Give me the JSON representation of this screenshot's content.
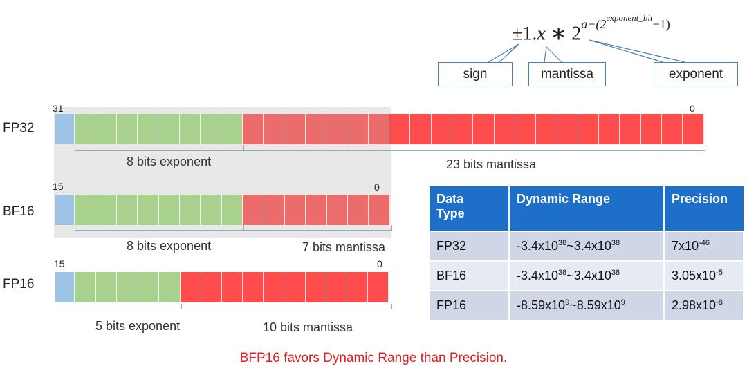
{
  "formula": {
    "prefix": "±1.",
    "x": "x",
    "mid": " ∗ 2",
    "exp_a": "a−(2",
    "exp_inner": "exponent_bit",
    "exp_tail": "−1)"
  },
  "labels": {
    "sign": "sign",
    "mantissa": "mantissa",
    "exponent": "exponent"
  },
  "formats": [
    {
      "name": "FP32",
      "msb": "31",
      "lsb": "0",
      "exp_caption": "8 bits exponent",
      "man_caption": "23 bits mantissa"
    },
    {
      "name": "BF16",
      "msb": "15",
      "lsb": "0",
      "exp_caption": "8 bits exponent",
      "man_caption": "7 bits mantissa"
    },
    {
      "name": "FP16",
      "msb": "15",
      "lsb": "0",
      "exp_caption": "5 bits exponent",
      "man_caption": "10 bits mantissa"
    }
  ],
  "table": {
    "headers": [
      "Data\nType",
      "Dynamic Range",
      "Precision"
    ],
    "rows": [
      {
        "type": "FP32",
        "range": [
          "-3.4x10",
          "38",
          "~3.4x10",
          "38"
        ],
        "precision": [
          "7x10",
          "-46"
        ]
      },
      {
        "type": "BF16",
        "range": [
          "-3.4x10",
          "38",
          "~3.4x10",
          "38"
        ],
        "precision": [
          "3.05x10",
          "-5"
        ]
      },
      {
        "type": "FP16",
        "range": [
          "-8.59x10",
          "9",
          "~8.59x10",
          "9"
        ],
        "precision": [
          "2.98x10",
          "-8"
        ]
      }
    ]
  },
  "footer": "BFP16 favors Dynamic Range than Precision.",
  "colors": {
    "sign": "#9dc3e6",
    "exponent": "#a9d18e",
    "mantissa": "#ff4d4d",
    "header": "#1e6fc8",
    "footer": "#e02020"
  }
}
